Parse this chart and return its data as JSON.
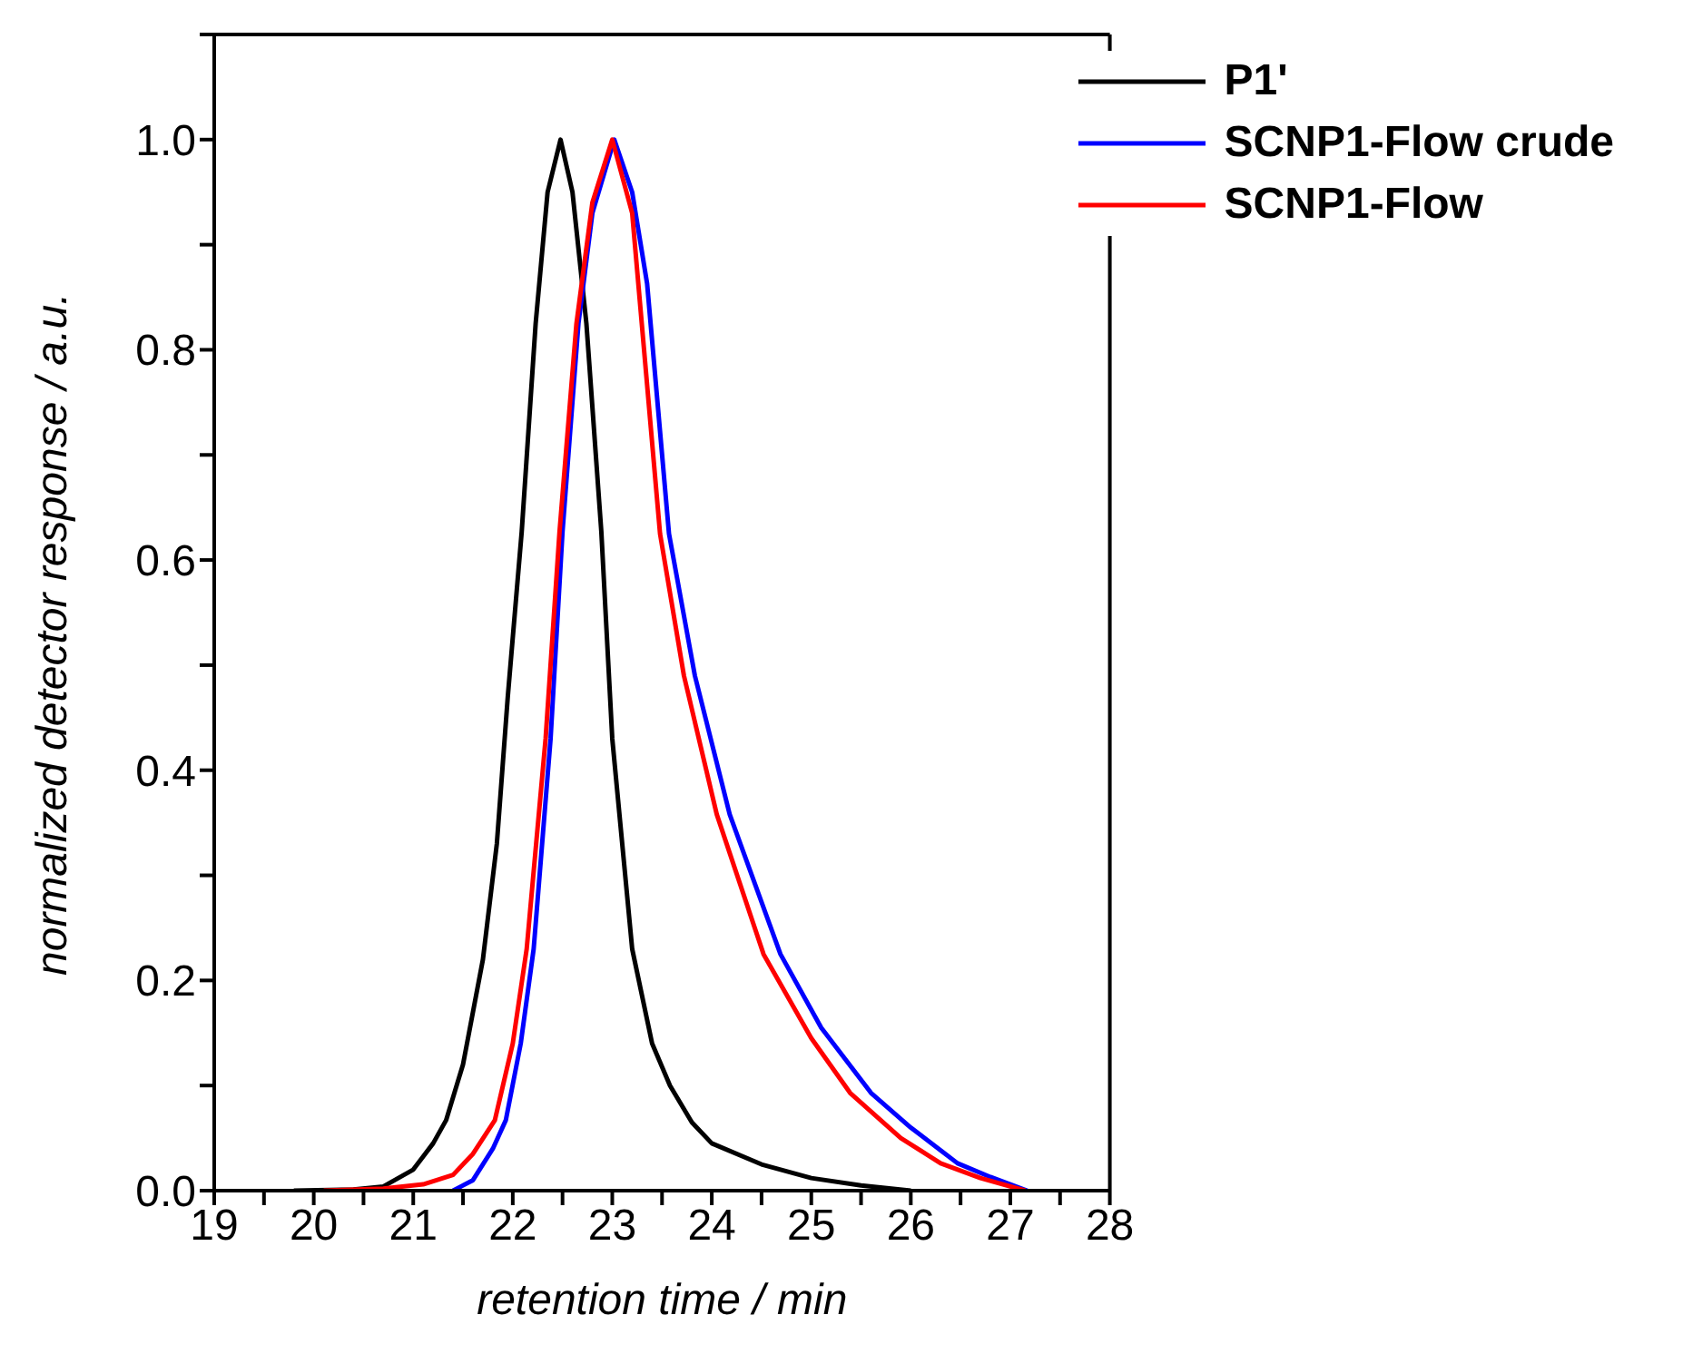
{
  "chart_data": {
    "type": "line",
    "xlabel": "retention time / min",
    "ylabel": "normalized detector response / a.u.",
    "xlim": [
      19,
      28
    ],
    "ylim": [
      0,
      1.1
    ],
    "xticks": [
      19,
      {
        "value": 19.5,
        "label": null
      },
      20,
      {
        "value": 20.5,
        "label": null
      },
      21,
      {
        "value": 21.5,
        "label": null
      },
      22,
      {
        "value": 22.5,
        "label": null
      },
      23,
      {
        "value": 23.5,
        "label": null
      },
      24,
      {
        "value": 24.5,
        "label": null
      },
      25,
      {
        "value": 25.5,
        "label": null
      },
      26,
      {
        "value": 26.5,
        "label": null
      },
      27,
      {
        "value": 27.5,
        "label": null
      },
      28
    ],
    "yticks": [
      {
        "value": 0,
        "label": "0.0"
      },
      {
        "value": 0.1,
        "label": null
      },
      {
        "value": 0.2,
        "label": "0.2"
      },
      {
        "value": 0.3,
        "label": null
      },
      {
        "value": 0.4,
        "label": "0.4"
      },
      {
        "value": 0.5,
        "label": null
      },
      {
        "value": 0.6,
        "label": "0.6"
      },
      {
        "value": 0.7,
        "label": null
      },
      {
        "value": 0.8,
        "label": "0.8"
      },
      {
        "value": 0.9,
        "label": null
      },
      {
        "value": 1,
        "label": "1.0"
      },
      {
        "value": 1.1,
        "label": null
      }
    ],
    "legend": "top right",
    "grid": false,
    "marker": "none",
    "line_style": "solid",
    "series": [
      {
        "name": "P1'",
        "color": "#000000",
        "x": [
          19.8,
          20.4,
          20.7,
          21.0,
          21.2,
          21.33,
          21.5,
          21.7,
          21.84,
          21.95,
          22.09,
          22.23,
          22.35,
          22.48,
          22.6,
          22.74,
          22.89,
          23.0,
          23.2,
          23.4,
          23.58,
          23.8,
          24.0,
          24.5,
          25.0,
          25.5,
          26.0
        ],
        "values": [
          0,
          0.001,
          0.004,
          0.02,
          0.045,
          0.067,
          0.12,
          0.22,
          0.33,
          0.47,
          0.627,
          0.825,
          0.95,
          1.0,
          0.95,
          0.825,
          0.627,
          0.43,
          0.23,
          0.14,
          0.1,
          0.065,
          0.045,
          0.025,
          0.012,
          0.005,
          0
        ]
      },
      {
        "name": "SCNP1-Flow crude",
        "color": "#0000ff",
        "x": [
          21.4,
          21.6,
          21.8,
          21.93,
          22.08,
          22.21,
          22.38,
          22.5,
          22.66,
          22.8,
          23.02,
          23.2,
          23.35,
          23.57,
          23.83,
          24.18,
          24.69,
          25.1,
          25.6,
          26.0,
          26.47,
          26.8,
          27.17
        ],
        "values": [
          0,
          0.01,
          0.04,
          0.067,
          0.14,
          0.23,
          0.43,
          0.627,
          0.825,
          0.93,
          1.0,
          0.95,
          0.863,
          0.625,
          0.49,
          0.358,
          0.225,
          0.155,
          0.093,
          0.06,
          0.026,
          0.013,
          0
        ]
      },
      {
        "name": "SCNP1-Flow",
        "color": "#ff0000",
        "x": [
          20.1,
          20.7,
          21.1,
          21.4,
          21.6,
          21.82,
          22.0,
          22.14,
          22.33,
          22.47,
          22.64,
          22.8,
          23.0,
          23.2,
          23.48,
          23.72,
          24.05,
          24.52,
          25.0,
          25.39,
          25.9,
          26.3,
          26.7,
          27.15
        ],
        "values": [
          0,
          0.002,
          0.006,
          0.015,
          0.035,
          0.067,
          0.14,
          0.23,
          0.43,
          0.627,
          0.825,
          0.94,
          1.0,
          0.93,
          0.625,
          0.49,
          0.358,
          0.225,
          0.145,
          0.093,
          0.05,
          0.026,
          0.012,
          0
        ]
      }
    ]
  }
}
